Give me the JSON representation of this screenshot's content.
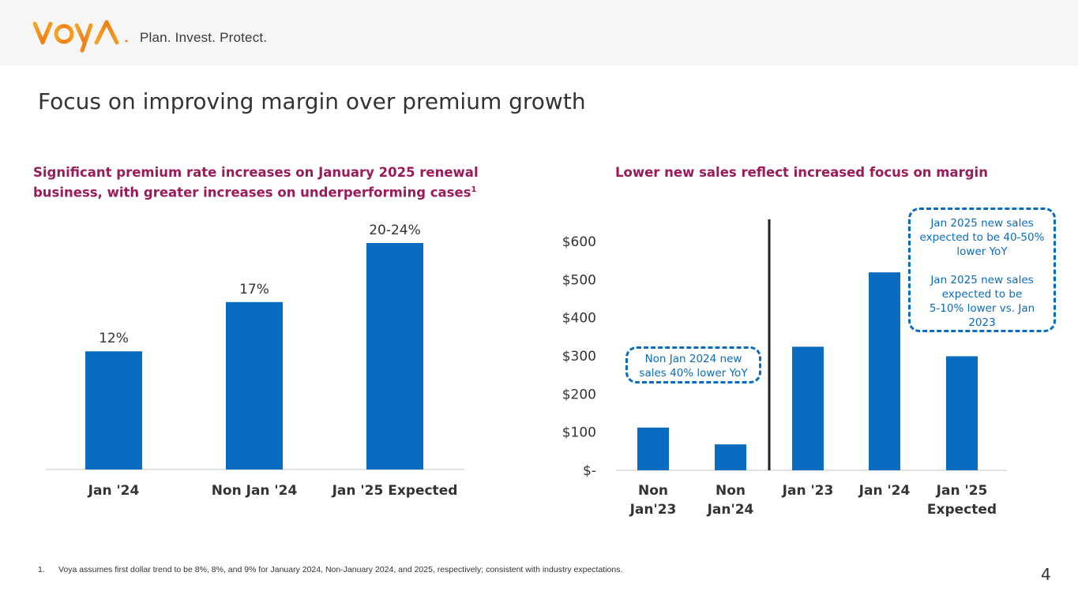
{
  "header": {
    "logo_text": "voya",
    "tagline": "Plan. Invest. Protect."
  },
  "page": {
    "title": "Focus on improving margin over premium growth",
    "page_number": "4"
  },
  "left_panel": {
    "subhead": "Significant premium rate increases on January 2025 renewal business, with greater increases on underperforming cases",
    "subhead_superscript": "1"
  },
  "right_panel": {
    "subhead": "Lower new sales reflect increased focus on margin",
    "callout_left": [
      "Non Jan 2024 new",
      "sales 40% lower YoY"
    ],
    "callout_right": [
      "Jan 2025 new sales",
      "expected to be 40-50%",
      "lower YoY",
      "",
      "Jan 2025 new sales",
      "expected to be",
      "5-10% lower vs. Jan",
      "2023"
    ]
  },
  "footnote": {
    "number": "1.",
    "text": "Voya assumes first dollar trend to be 8%, 8%, and 9% for January 2024, Non-January 2024, and 2025, respectively; consistent with industry expectations."
  },
  "colors": {
    "bar": "#0a6cc0",
    "subhead": "#9b1b5a",
    "brand_orange": "#f08a1c",
    "axis": "#d9d9d9"
  },
  "chart_data": [
    {
      "type": "bar",
      "title": "Significant premium rate increases on January 2025 renewal business, with greater increases on underperforming cases",
      "categories": [
        "Jan '24",
        "Non Jan '24",
        "Jan '25 Expected"
      ],
      "values": [
        12,
        17,
        23
      ],
      "data_labels": [
        "12%",
        "17%",
        "20-24%"
      ],
      "xlabel": "",
      "ylabel": "",
      "ylim": [
        0,
        25
      ],
      "grid": false,
      "legend": "none"
    },
    {
      "type": "bar",
      "title": "Lower new sales reflect increased focus on margin",
      "categories": [
        [
          "Non",
          "Jan'23"
        ],
        [
          "Non",
          "Jan'24"
        ],
        [
          "Jan '23"
        ],
        [
          "Jan '24"
        ],
        [
          "Jan '25",
          "Expected"
        ]
      ],
      "values": [
        112,
        68,
        324,
        519,
        299
      ],
      "xlabel": "",
      "ylabel": "",
      "ylim": [
        0,
        600
      ],
      "yticks": [
        0,
        100,
        200,
        300,
        400,
        500,
        600
      ],
      "ytick_labels": [
        "$-",
        "$100",
        "$200",
        "$300",
        "$400",
        "$500",
        "$600"
      ],
      "divider_after_index": 1,
      "grid": false,
      "legend": "none"
    }
  ]
}
